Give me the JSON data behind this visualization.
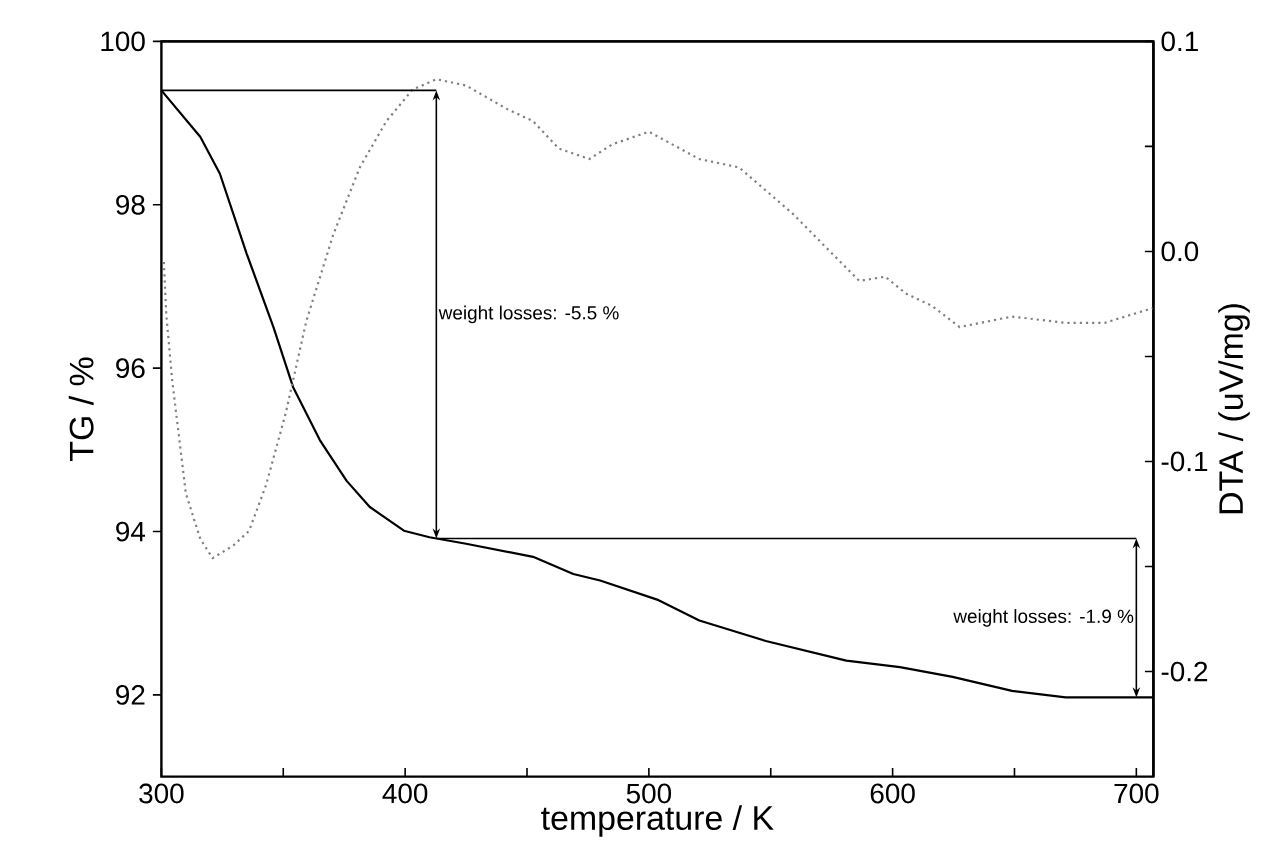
{
  "chart_data": {
    "type": "line",
    "xlabel": "temperature / K",
    "ylabel": "TG / %",
    "y2label": "DTA / (uV/mg)",
    "xlim": [
      300,
      707
    ],
    "ylim": [
      91,
      100
    ],
    "y2lim": [
      -0.25,
      0.1
    ],
    "xticks": [
      300,
      {
        "value": 350,
        "label": null
      },
      400,
      {
        "value": 450,
        "label": null
      },
      500,
      {
        "value": 550,
        "label": null
      },
      600,
      {
        "value": 650,
        "label": null
      },
      700
    ],
    "yticks": [
      92,
      94,
      96,
      98,
      100
    ],
    "y2ticks": [
      {
        "value": 0.1,
        "label": "0.1"
      },
      {
        "value": 0.05,
        "label": null
      },
      {
        "value": 0,
        "label": "0.0"
      },
      {
        "value": -0.05,
        "label": null
      },
      {
        "value": -0.1,
        "label": "-0.1"
      },
      {
        "value": -0.15,
        "label": null
      },
      {
        "value": -0.2,
        "label": "-0.2"
      }
    ],
    "marker": "none",
    "grid": false,
    "series": [
      {
        "color": "#000000",
        "line_style": "solid",
        "x": [
          300,
          316,
          324,
          335,
          346,
          354,
          365,
          376,
          385.5,
          399.5,
          410,
          425,
          452.5,
          469,
          480,
          504,
          520.7,
          548,
          581,
          603,
          624.6,
          649,
          671,
          706.6
        ],
        "values": [
          99.4,
          98.83,
          98.38,
          97.4,
          96.5,
          95.77,
          95.12,
          94.62,
          94.3,
          94.01,
          93.93,
          93.85,
          93.69,
          93.48,
          93.4,
          93.16,
          92.91,
          92.66,
          92.42,
          92.34,
          92.22,
          92.05,
          91.97,
          91.97
        ]
      },
      {
        "color": "#808080",
        "line_style": "dotted",
        "axis": "y2",
        "x": [
          301,
          302,
          304.4,
          310,
          316,
          321,
          329.5,
          336,
          343,
          351,
          359.5,
          370.5,
          381.4,
          392.3,
          403,
          412.8,
          425,
          441.5,
          452.5,
          463,
          475.6,
          485,
          500,
          520.7,
          537,
          559,
          572.6,
          586.3,
          597,
          605.4,
          616.3,
          627.5,
          649,
          671,
          687,
          706.6
        ],
        "values": [
          -0.005,
          -0.03,
          -0.061,
          -0.115,
          -0.137,
          -0.146,
          -0.14,
          -0.133,
          -0.111,
          -0.077,
          -0.033,
          0.008,
          0.04,
          0.062,
          0.077,
          0.082,
          0.079,
          0.068,
          0.062,
          0.049,
          0.044,
          0.051,
          0.057,
          0.044,
          0.04,
          0.018,
          0.002,
          -0.014,
          -0.012,
          -0.02,
          -0.026,
          -0.036,
          -0.031,
          -0.034,
          -0.034,
          -0.027
        ]
      }
    ],
    "annotations": [
      "weight losses: -5.5 %",
      "weight losses: -1.9 %"
    ]
  }
}
